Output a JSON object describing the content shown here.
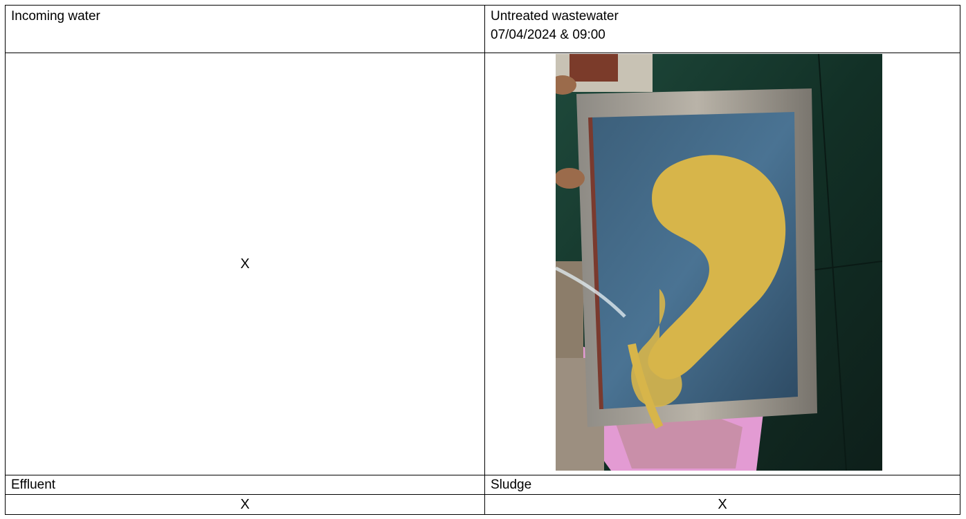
{
  "table": {
    "incoming_label": "Incoming water",
    "untreated_label": "Untreated wastewater",
    "untreated_datetime": "07/04/2024 & 09:00",
    "incoming_placeholder": "X",
    "effluent_label": "Effluent",
    "sludge_label": "Sludge",
    "effluent_value": "X",
    "sludge_value": "X"
  },
  "photo": {
    "description_icon": "screen-printing-frame-photo"
  }
}
